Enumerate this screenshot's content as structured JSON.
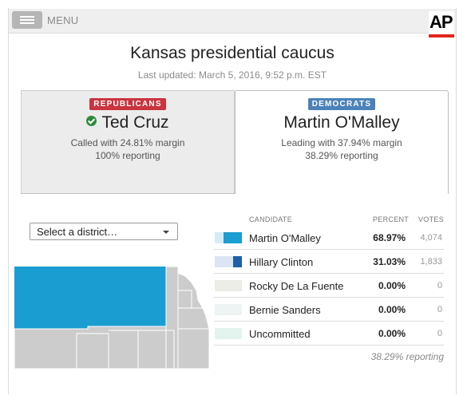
{
  "header": {
    "menu_label": "MENU",
    "logo_text": "AP"
  },
  "page": {
    "title": "Kansas presidential caucus",
    "updated": "Last updated: March 5, 2016, 9:52 p.m. EST"
  },
  "panels": {
    "republicans": {
      "badge": "REPUBLICANS",
      "name": "Ted Cruz",
      "line1": "Called with 24.81% margin",
      "line2": "100% reporting",
      "selected": false
    },
    "democrats": {
      "badge": "DEMOCRATS",
      "name": "Martin O'Malley",
      "line1": "Leading with 37.94% margin",
      "line2": "38.29% reporting",
      "selected": true
    }
  },
  "district_select": {
    "value": "Select a district…"
  },
  "table": {
    "headers": {
      "candidate": "CANDIDATE",
      "percent": "PERCENT",
      "votes": "VOTES"
    },
    "rows": [
      {
        "name": "Martin O'Malley",
        "percent": "68.97%",
        "votes": "4,074",
        "share": 0.6897,
        "color": "#1a9dd0",
        "bg": "#d6ecf5"
      },
      {
        "name": "Hillary Clinton",
        "percent": "31.03%",
        "votes": "1,833",
        "share": 0.3103,
        "color": "#1f5fa8",
        "bg": "#dbe4f2"
      },
      {
        "name": "Rocky De La Fuente",
        "percent": "0.00%",
        "votes": "0",
        "share": 0,
        "color": "#8c8c7a",
        "bg": "#ecece6"
      },
      {
        "name": "Bernie Sanders",
        "percent": "0.00%",
        "votes": "0",
        "share": 0,
        "color": "#7aa3a3",
        "bg": "#eef3f3"
      },
      {
        "name": "Uncommitted",
        "percent": "0.00%",
        "votes": "0",
        "share": 0,
        "color": "#7ec9b7",
        "bg": "#e3f4ef"
      }
    ],
    "reporting": "38.29% reporting"
  },
  "map": {
    "leader_color": "#1a9dd0",
    "other_color": "#cccccc"
  }
}
